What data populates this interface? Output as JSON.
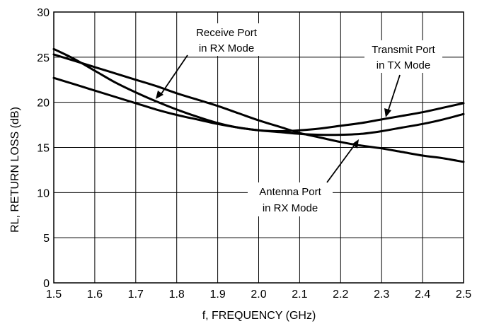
{
  "chart_data": {
    "type": "line",
    "title": "",
    "xlabel": "f, FREQUENCY (GHz)",
    "ylabel": "RL, RETURN LOSS (dB)",
    "xlim": [
      1.5,
      2.5
    ],
    "ylim": [
      0,
      30
    ],
    "grid": true,
    "x_ticks": [
      "1.5",
      "1.6",
      "1.7",
      "1.8",
      "1.9",
      "2.0",
      "2.1",
      "2.2",
      "2.3",
      "2.4",
      "2.5"
    ],
    "y_ticks": [
      "0",
      "5",
      "10",
      "15",
      "20",
      "25",
      "30"
    ],
    "series": [
      {
        "id": "receive",
        "x": [
          1.5,
          1.55,
          1.6,
          1.65,
          1.7,
          1.75,
          1.8,
          1.85,
          1.9,
          1.95,
          2.0,
          2.05,
          2.1,
          2.15,
          2.2,
          2.25,
          2.3,
          2.35,
          2.4,
          2.45,
          2.5
        ],
        "y": [
          25.9,
          24.8,
          23.5,
          22.2,
          21.1,
          20.1,
          19.2,
          18.4,
          17.7,
          17.2,
          16.9,
          16.7,
          16.5,
          16.4,
          16.4,
          16.5,
          16.8,
          17.2,
          17.6,
          18.1,
          18.7
        ]
      },
      {
        "id": "transmit",
        "x": [
          1.5,
          1.55,
          1.6,
          1.65,
          1.7,
          1.75,
          1.8,
          1.85,
          1.9,
          1.95,
          2.0,
          2.05,
          2.1,
          2.15,
          2.2,
          2.25,
          2.3,
          2.35,
          2.4,
          2.45,
          2.5
        ],
        "y": [
          22.7,
          22.0,
          21.3,
          20.6,
          19.9,
          19.2,
          18.6,
          18.1,
          17.6,
          17.2,
          16.9,
          16.8,
          16.9,
          17.1,
          17.4,
          17.7,
          18.1,
          18.5,
          18.9,
          19.4,
          19.9
        ]
      },
      {
        "id": "antenna",
        "x": [
          1.5,
          1.55,
          1.6,
          1.65,
          1.7,
          1.75,
          1.8,
          1.85,
          1.9,
          1.95,
          2.0,
          2.05,
          2.1,
          2.15,
          2.2,
          2.25,
          2.3,
          2.35,
          2.4,
          2.45,
          2.5
        ],
        "y": [
          25.3,
          24.6,
          23.9,
          23.2,
          22.5,
          21.8,
          21.0,
          20.3,
          19.6,
          18.8,
          18.0,
          17.3,
          16.6,
          16.1,
          15.6,
          15.2,
          14.9,
          14.5,
          14.1,
          13.8,
          13.4
        ]
      }
    ],
    "annotations": [
      {
        "id": "receive",
        "lines": [
          "Receive Port",
          "in RX Mode"
        ]
      },
      {
        "id": "transmit",
        "lines": [
          "Transmit Port",
          "in TX Mode"
        ]
      },
      {
        "id": "antenna",
        "lines": [
          "Antenna Port",
          "in RX Mode"
        ]
      }
    ]
  }
}
